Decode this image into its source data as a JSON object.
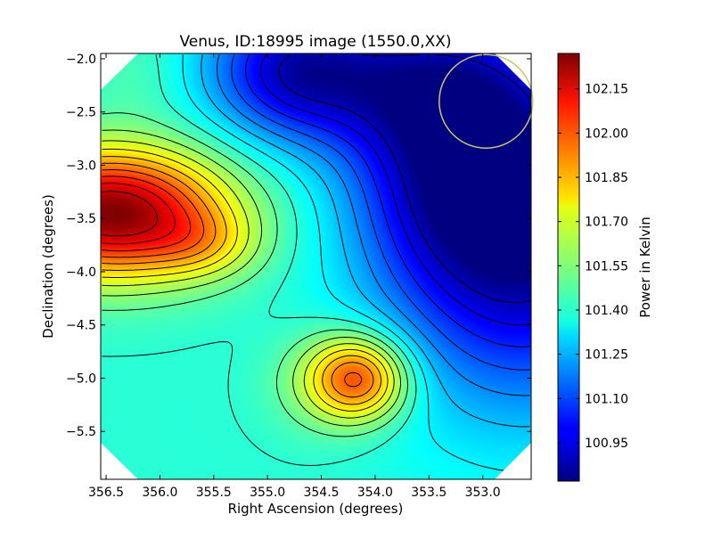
{
  "chart_data": {
    "type": "heatmap",
    "title": "Venus, ID:18995 image (1550.0,XX)",
    "xlabel": "Right Ascension (degrees)",
    "ylabel": "Declination (degrees)",
    "colorbar_label": "Power in Kelvin",
    "colormap": "jet",
    "xlim": [
      356.55,
      352.55
    ],
    "ylim": [
      -5.95,
      -1.95
    ],
    "x_ticks": [
      356.5,
      356.0,
      355.5,
      355.0,
      354.5,
      354.0,
      353.5,
      353.0
    ],
    "x_tick_labels": [
      "356.5",
      "356.0",
      "355.5",
      "355.0",
      "354.5",
      "354.0",
      "353.5",
      "353.0"
    ],
    "y_ticks": [
      -2.0,
      -2.5,
      -3.0,
      -3.5,
      -4.0,
      -4.5,
      -5.0,
      -5.5
    ],
    "y_tick_labels": [
      "−2.0",
      "−2.5",
      "−3.0",
      "−3.5",
      "−4.0",
      "−4.5",
      "−5.0",
      "−5.5"
    ],
    "colorbar_range": [
      100.82,
      102.27
    ],
    "colorbar_ticks": [
      102.15,
      102.0,
      101.85,
      101.7,
      101.55,
      101.4,
      101.25,
      101.1,
      100.95
    ],
    "colorbar_tick_labels": [
      "102.15",
      "102.00",
      "101.85",
      "101.70",
      "101.55",
      "101.40",
      "101.25",
      "101.10",
      "100.95"
    ],
    "features": [
      {
        "ra": 356.35,
        "dec": -3.45,
        "value": 102.27
      },
      {
        "ra": 354.15,
        "dec": -5.0,
        "value": 101.95
      },
      {
        "ra": 352.7,
        "dec": -3.6,
        "value": 100.82
      },
      {
        "ra": 354.85,
        "dec": -2.15,
        "value": 100.92
      }
    ],
    "beam_circle": {
      "ra": 352.97,
      "dec": -2.4,
      "radius_deg": 0.36,
      "color": "#c8c864"
    }
  }
}
